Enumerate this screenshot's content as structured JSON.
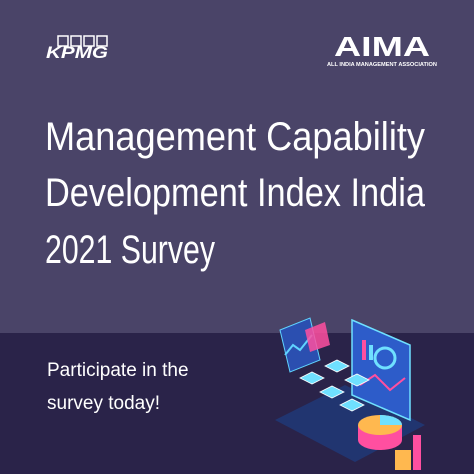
{
  "header": {
    "left_logo": "KPMG",
    "right_logo": "AIMA",
    "right_logo_subtitle": "ALL INDIA MANAGEMENT ASSOCIATION"
  },
  "title": {
    "lines": [
      "Management Capability",
      "Development Index India",
      "2021 Survey"
    ]
  },
  "call_to_action": {
    "lines": [
      "Participate in the",
      "survey today!"
    ]
  }
}
